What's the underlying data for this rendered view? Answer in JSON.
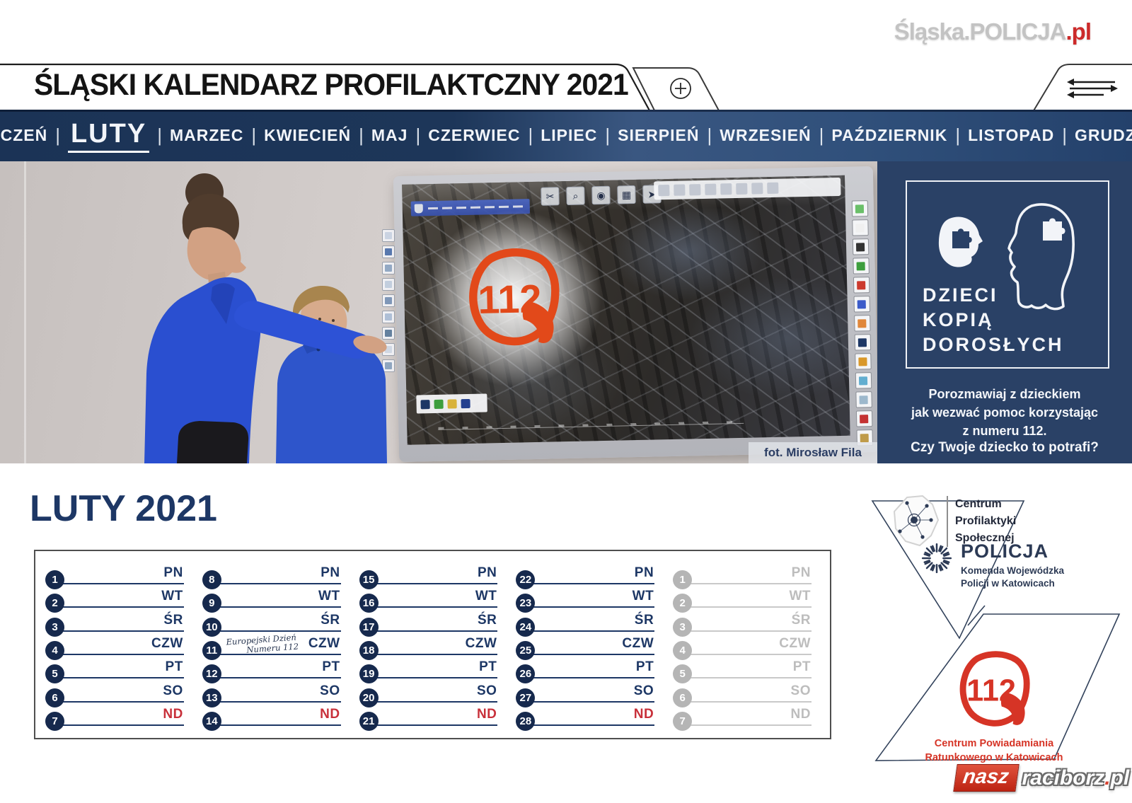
{
  "site_logo": {
    "text": "Śląska.POLICJA",
    "suffix": ".pl"
  },
  "header": {
    "title": "ŚLĄSKI KALENDARZ PROFILAKTCZNY 2021"
  },
  "month_nav": {
    "separator": "|",
    "active_month": "LUTY",
    "months": [
      "STYCZEŃ",
      "LUTY",
      "MARZEC",
      "KWIECIEŃ",
      "MAJ",
      "CZERWIEC",
      "LIPIEC",
      "SIERPIEŃ",
      "WRZESIEŃ",
      "PAŹDZIERNIK",
      "LISTOPAD",
      "GRUDZIEŃ"
    ]
  },
  "photo": {
    "credit": "fot. Mirosław Fila",
    "board_number": "112",
    "board": {
      "map_tool_glyphs": [
        "✂",
        "⌕",
        "◉",
        "▦",
        "➤"
      ],
      "top_toolbar_slots": 8,
      "right_tools": [
        "#6abf69",
        "#f0f0f0",
        "#333333",
        "#3d9e3d",
        "#cc3a2e",
        "#3b5bc9",
        "#e0873a",
        "#1d3765",
        "#d9982a",
        "#63aed0",
        "#9db8cc",
        "#c43232",
        "#bf9b4a"
      ],
      "left_tools": [
        "#cad3e2",
        "#5878ae",
        "#93a9c4",
        "#c2cede",
        "#7f97b8",
        "#aebfd6",
        "#64819f",
        "#d0d8e4",
        "#8fa6c0"
      ],
      "footer_logo_colors": [
        "#1d3765",
        "#3d9e3d",
        "#d8b23a",
        "#24408e"
      ]
    }
  },
  "promo_panel": {
    "title_lines": [
      "DZIECI",
      "KOPIĄ",
      "DOROSŁYCH"
    ],
    "message_lines": [
      "Porozmawiaj z dzieckiem",
      "jak wezwać pomoc korzystając",
      "z numeru 112."
    ],
    "question": "Czy Twoje dziecko to potrafi?"
  },
  "calendar": {
    "title": "LUTY 2021",
    "weekdays": [
      "PN",
      "WT",
      "ŚR",
      "CZW",
      "PT",
      "SO",
      "ND"
    ],
    "columns": [
      {
        "start": 1,
        "muted": false
      },
      {
        "start": 8,
        "muted": false
      },
      {
        "start": 15,
        "muted": false
      },
      {
        "start": 22,
        "muted": false
      },
      {
        "start": 1,
        "muted": true
      }
    ],
    "annotation": {
      "day": 11,
      "lines": [
        "Europejski Dzień",
        "Numeru 112"
      ]
    }
  },
  "partners": {
    "cps": {
      "lines": [
        "Centrum",
        "Profilaktyki",
        "Społecznej"
      ]
    },
    "policja": {
      "name": "POLICJA",
      "sub_lines": [
        "Komenda Wojewódzka",
        "Policji w Katowicach"
      ]
    },
    "cpr": {
      "number": "112",
      "lines": [
        "Centrum Powiadamiania",
        "Ratunkowego w Katowicach"
      ]
    }
  },
  "watermark": {
    "part1": "nasz",
    "part2": "raciborz",
    "dot": ".",
    "part3": "pl"
  },
  "colors": {
    "navy": "#1d3765",
    "panel_navy": "#2a4166",
    "red": "#c8303a",
    "cpr_red": "#d63426",
    "board_orange": "#e2491a"
  }
}
